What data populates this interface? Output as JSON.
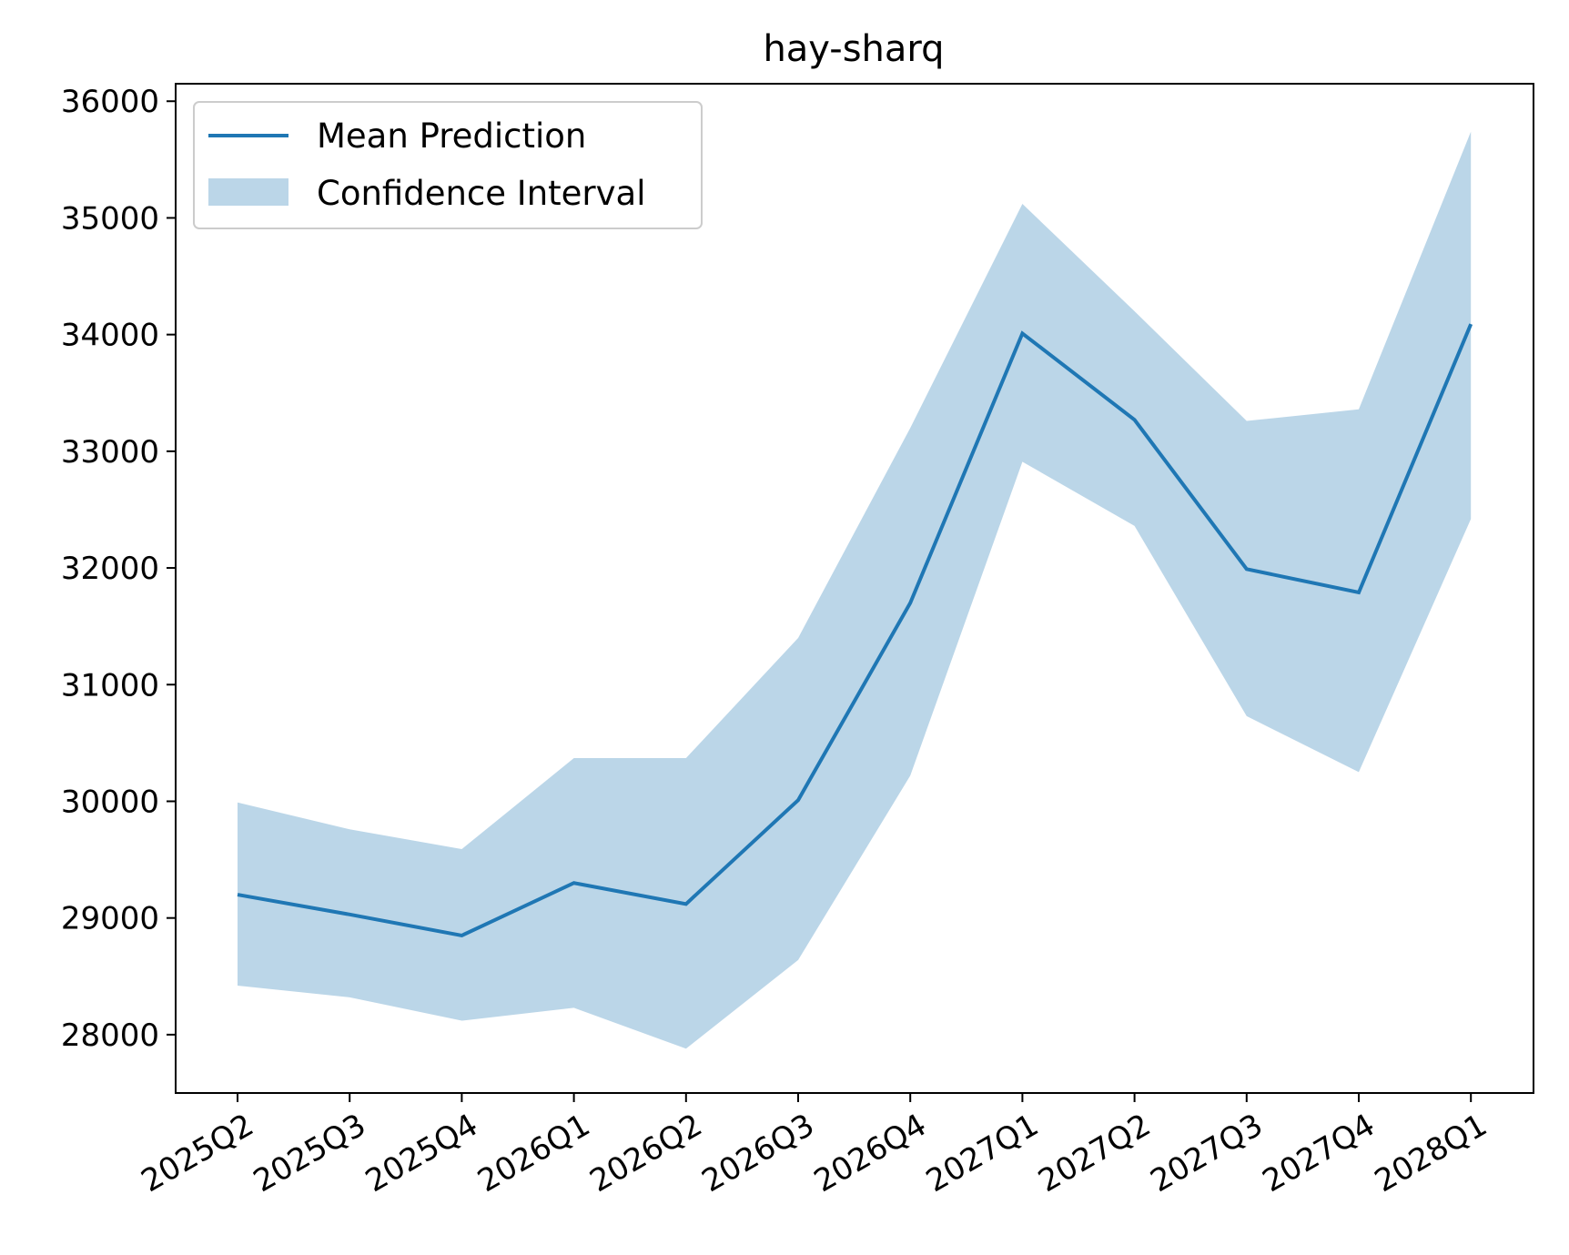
{
  "chart_data": {
    "type": "line",
    "title": "hay-sharq",
    "xlabel": "",
    "ylabel": "",
    "categories": [
      "2025Q2",
      "2025Q3",
      "2025Q4",
      "2026Q1",
      "2026Q2",
      "2026Q3",
      "2026Q4",
      "2027Q1",
      "2027Q2",
      "2027Q3",
      "2027Q4",
      "2028Q1"
    ],
    "series": [
      {
        "name": "Mean Prediction",
        "values": [
          29200,
          29030,
          28850,
          29300,
          29120,
          30010,
          31700,
          34010,
          33270,
          31990,
          31790,
          34090
        ],
        "color": "#1f77b4"
      }
    ],
    "band": {
      "name": "Confidence Interval",
      "lower": [
        28420,
        28320,
        28120,
        28230,
        27880,
        28640,
        30220,
        32910,
        32360,
        30730,
        30250,
        32420
      ],
      "upper": [
        29990,
        29760,
        29590,
        30370,
        30370,
        31400,
        33200,
        35120,
        34200,
        33260,
        33360,
        35740
      ],
      "color": "#1f77b4",
      "opacity": 0.3
    },
    "ylim": [
      27500,
      36150
    ],
    "yticks": [
      28000,
      29000,
      30000,
      31000,
      32000,
      33000,
      34000,
      35000,
      36000
    ],
    "grid": false,
    "legend_position": "top-left"
  }
}
